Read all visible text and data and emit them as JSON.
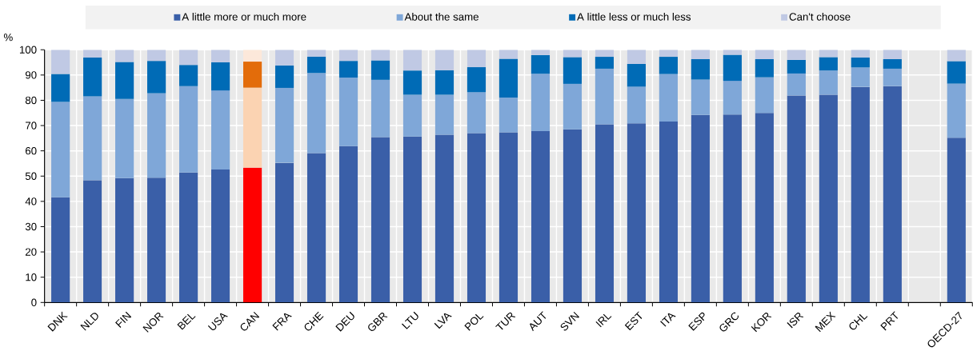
{
  "chart_data": {
    "type": "bar",
    "stacked": true,
    "ylabel": "%",
    "legend": "top",
    "grid": true,
    "ylim": [
      0,
      100
    ],
    "yticks": [
      0,
      10,
      20,
      30,
      40,
      50,
      60,
      70,
      80,
      90,
      100
    ],
    "categories": [
      "DNK",
      "NLD",
      "FIN",
      "NOR",
      "BEL",
      "USA",
      "CAN",
      "FRA",
      "CHE",
      "DEU",
      "GBR",
      "LTU",
      "LVA",
      "POL",
      "TUR",
      "AUT",
      "SVN",
      "IRL",
      "EST",
      "ITA",
      "ESP",
      "GRC",
      "KOR",
      "ISR",
      "MEX",
      "CHL",
      "PRT",
      null,
      "OECD-27"
    ],
    "series": [
      {
        "name": "A little more or much more",
        "color": "#3a5fa8",
        "colors": [
          "#3a5fa8",
          "#3a5fa8",
          "#3a5fa8",
          "#3a5fa8",
          "#3a5fa8",
          "#3a5fa8",
          "#ff0000",
          "#3a5fa8",
          "#3a5fa8",
          "#3a5fa8",
          "#3a5fa8",
          "#3a5fa8",
          "#3a5fa8",
          "#3a5fa8",
          "#3a5fa8",
          "#3a5fa8",
          "#3a5fa8",
          "#3a5fa8",
          "#3a5fa8",
          "#3a5fa8",
          "#3a5fa8",
          "#3a5fa8",
          "#3a5fa8",
          "#3a5fa8",
          "#3a5fa8",
          "#3a5fa8",
          "#3a5fa8",
          "#3a5fa8",
          "#3a5fa8"
        ],
        "values": [
          41.6,
          48.4,
          49.2,
          49.4,
          51.4,
          52.6,
          53.4,
          55.3,
          59.1,
          61.9,
          65.4,
          65.7,
          66.4,
          67.0,
          67.3,
          67.8,
          68.5,
          70.5,
          70.9,
          71.6,
          74.2,
          74.4,
          75.0,
          81.9,
          82.2,
          85.3,
          85.6,
          null,
          65.2
        ]
      },
      {
        "name": "About the same",
        "color": "#7fa7d8",
        "colors": [
          "#7fa7d8",
          "#7fa7d8",
          "#7fa7d8",
          "#7fa7d8",
          "#7fa7d8",
          "#7fa7d8",
          "#fbd3b2",
          "#7fa7d8",
          "#7fa7d8",
          "#7fa7d8",
          "#7fa7d8",
          "#7fa7d8",
          "#7fa7d8",
          "#7fa7d8",
          "#7fa7d8",
          "#7fa7d8",
          "#7fa7d8",
          "#7fa7d8",
          "#7fa7d8",
          "#7fa7d8",
          "#7fa7d8",
          "#7fa7d8",
          "#7fa7d8",
          "#7fa7d8",
          "#7fa7d8",
          "#7fa7d8",
          "#7fa7d8",
          "#7fa7d8",
          "#7fa7d8"
        ],
        "values": [
          37.8,
          33.2,
          31.3,
          33.4,
          34.2,
          31.3,
          31.6,
          29.6,
          31.7,
          27.1,
          22.7,
          16.5,
          15.8,
          16.2,
          13.8,
          22.7,
          18.0,
          22.0,
          14.5,
          18.8,
          14.0,
          13.3,
          14.1,
          8.7,
          9.6,
          7.7,
          6.9,
          null,
          21.4
        ]
      },
      {
        "name": "A little less or much less",
        "color": "#006bb6",
        "colors": [
          "#006bb6",
          "#006bb6",
          "#006bb6",
          "#006bb6",
          "#006bb6",
          "#006bb6",
          "#e36c0a",
          "#006bb6",
          "#006bb6",
          "#006bb6",
          "#006bb6",
          "#006bb6",
          "#006bb6",
          "#006bb6",
          "#006bb6",
          "#006bb6",
          "#006bb6",
          "#006bb6",
          "#006bb6",
          "#006bb6",
          "#006bb6",
          "#006bb6",
          "#006bb6",
          "#006bb6",
          "#006bb6",
          "#006bb6",
          "#006bb6",
          "#006bb6",
          "#006bb6"
        ],
        "values": [
          11.0,
          15.3,
          14.7,
          12.8,
          8.4,
          11.1,
          10.3,
          8.9,
          6.5,
          6.6,
          7.7,
          9.6,
          9.7,
          9.9,
          15.3,
          7.4,
          10.6,
          4.7,
          9.0,
          6.8,
          8.1,
          10.3,
          7.2,
          5.4,
          5.3,
          3.9,
          3.8,
          null,
          8.9
        ]
      },
      {
        "name": "Can't choose",
        "color": "#c0c9e4",
        "colors": [
          "#c0c9e4",
          "#c0c9e4",
          "#c0c9e4",
          "#c0c9e4",
          "#c0c9e4",
          "#c0c9e4",
          "#fce8da",
          "#c0c9e4",
          "#c0c9e4",
          "#c0c9e4",
          "#c0c9e4",
          "#c0c9e4",
          "#c0c9e4",
          "#c0c9e4",
          "#c0c9e4",
          "#c0c9e4",
          "#c0c9e4",
          "#c0c9e4",
          "#c0c9e4",
          "#c0c9e4",
          "#c0c9e4",
          "#c0c9e4",
          "#c0c9e4",
          "#c0c9e4",
          "#c0c9e4",
          "#c0c9e4",
          "#c0c9e4",
          "#c0c9e4",
          "#c0c9e4"
        ],
        "values": [
          9.6,
          3.1,
          4.8,
          4.4,
          6.0,
          5.0,
          4.7,
          6.2,
          2.7,
          4.4,
          4.2,
          8.2,
          8.1,
          6.9,
          3.6,
          2.1,
          2.9,
          2.8,
          5.6,
          2.8,
          3.7,
          2.0,
          3.7,
          4.0,
          2.9,
          3.1,
          3.7,
          null,
          4.5
        ]
      }
    ]
  }
}
